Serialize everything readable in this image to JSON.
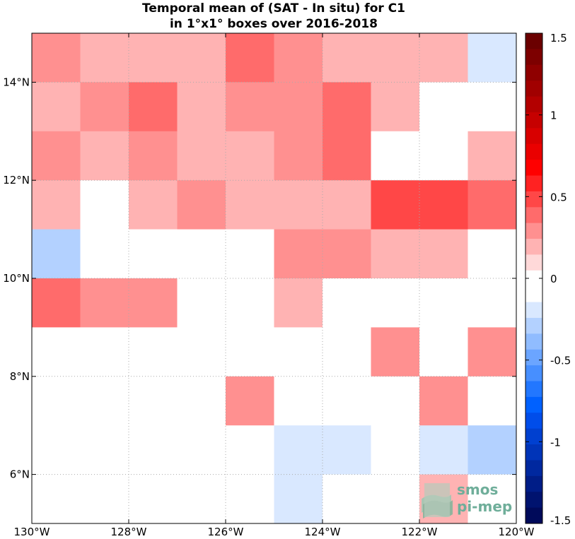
{
  "title": {
    "line1": "Temporal mean of (SAT - In situ) for C1",
    "line2": "in 1°x1° boxes over 2016-2018"
  },
  "logo": {
    "line1": "smos",
    "line2": "pi-mep",
    "color": "#6fae9a"
  },
  "chart_data": {
    "type": "heatmap",
    "x_range": [
      -130,
      -120
    ],
    "y_range": [
      5,
      15
    ],
    "x_ticks": [
      -130,
      -128,
      -126,
      -124,
      -122,
      -120
    ],
    "x_tick_labels": [
      "130°W",
      "128°W",
      "126°W",
      "124°W",
      "122°W",
      "120°W"
    ],
    "y_ticks": [
      6,
      8,
      10,
      12,
      14
    ],
    "y_tick_labels": [
      "6°N",
      "8°N",
      "10°N",
      "12°N",
      "14°N"
    ],
    "grid": true,
    "cell_size_deg": 1,
    "rows_lat_from_north": [
      14.5,
      13.5,
      12.5,
      11.5,
      10.5,
      9.5,
      8.5,
      7.5,
      6.5,
      5.5
    ],
    "cols_lon_from_west": [
      -129.5,
      -128.5,
      -127.5,
      -126.5,
      -125.5,
      -124.5,
      -123.5,
      -122.5,
      -121.5,
      -120.5
    ],
    "values": [
      [
        0.3,
        0.15,
        0.15,
        0.15,
        0.4,
        0.3,
        0.15,
        0.15,
        0.15,
        -0.15
      ],
      [
        0.15,
        0.3,
        0.4,
        0.15,
        0.3,
        0.3,
        0.4,
        0.15,
        0.0,
        0.0
      ],
      [
        0.3,
        0.15,
        0.3,
        0.15,
        0.15,
        0.3,
        0.4,
        0.0,
        0.0,
        0.15
      ],
      [
        0.15,
        0.0,
        0.15,
        0.3,
        0.15,
        0.15,
        0.15,
        0.5,
        0.5,
        0.4
      ],
      [
        -0.25,
        0.0,
        0.0,
        0.0,
        0.0,
        0.3,
        0.3,
        0.15,
        0.15,
        0.0
      ],
      [
        0.4,
        0.3,
        0.3,
        0.0,
        0.0,
        0.15,
        0.0,
        0.0,
        0.0,
        0.0
      ],
      [
        0.0,
        0.0,
        0.0,
        0.0,
        0.0,
        0.0,
        0.0,
        0.3,
        0.0,
        0.3
      ],
      [
        0.0,
        0.0,
        0.0,
        0.0,
        0.3,
        0.0,
        0.0,
        0.0,
        0.3,
        0.0
      ],
      [
        0.0,
        0.0,
        0.0,
        0.0,
        0.0,
        -0.15,
        -0.15,
        0.0,
        -0.15,
        -0.25
      ],
      [
        0.0,
        0.0,
        0.0,
        0.0,
        0.0,
        -0.15,
        0.0,
        0.0,
        0.15,
        0.0
      ]
    ],
    "colorbar": {
      "range": [
        -1.5,
        1.5
      ],
      "ticks": [
        1.5,
        1,
        0.5,
        0,
        -0.5,
        -1,
        -1.5
      ],
      "tick_labels": [
        "1.5",
        "1",
        "0.5",
        "0",
        "-0.5",
        "-1",
        "-1.5"
      ],
      "colors_top_to_bottom": [
        "#6b0000",
        "#7d0000",
        "#8f0000",
        "#a10000",
        "#b30000",
        "#c60000",
        "#d80000",
        "#ea0000",
        "#ff0000",
        "#ff2222",
        "#ff4747",
        "#ff6b6b",
        "#ff9090",
        "#ffb3b3",
        "#ffd9d9",
        "#ffffff",
        "#ffffff",
        "#d9e8ff",
        "#b3d1ff",
        "#90bcff",
        "#6ba5ff",
        "#478fff",
        "#2277ff",
        "#0061ff",
        "#004dea",
        "#0040d0",
        "#0034b8",
        "#00289f",
        "#001d87",
        "#00136f",
        "#000a5a"
      ]
    }
  }
}
